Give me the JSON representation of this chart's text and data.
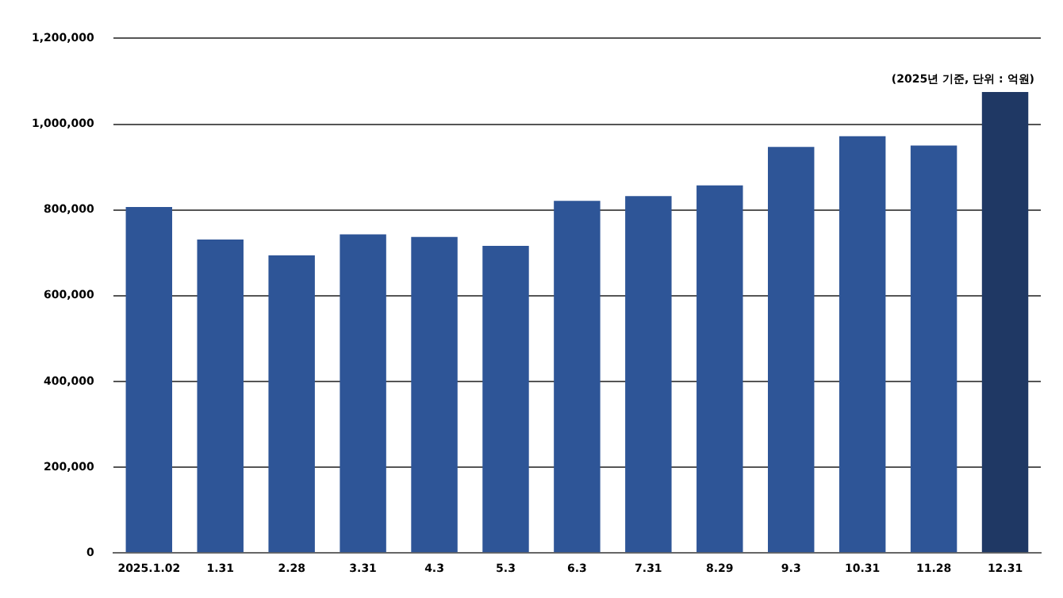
{
  "chart_data": {
    "type": "bar",
    "categories": [
      "2025.1.02",
      "1.31",
      "2.28",
      "3.31",
      "4.3",
      "5.3",
      "6.3",
      "7.31",
      "8.29",
      "9.3",
      "10.31",
      "11.28",
      "12.31"
    ],
    "values": [
      807000,
      731000,
      694000,
      743000,
      737000,
      716000,
      821000,
      832000,
      857000,
      947000,
      972000,
      950000,
      1075000
    ],
    "colors": [
      "#2e5597",
      "#2e5597",
      "#2e5597",
      "#2e5597",
      "#2e5597",
      "#2e5597",
      "#2e5597",
      "#2e5597",
      "#2e5597",
      "#2e5597",
      "#2e5597",
      "#2e5597",
      "#1f3864"
    ],
    "ylim": [
      0,
      1200000
    ],
    "yticks": [
      0,
      {
        "value": 200000,
        "label": "200,000"
      },
      {
        "value": 400000,
        "label": "400,000"
      },
      {
        "value": 600000,
        "label": "600,000"
      },
      {
        "value": 800000,
        "label": "800,000"
      },
      {
        "value": 1000000,
        "label": "1,000,000"
      },
      {
        "value": 1200000,
        "label": "1,200,000"
      }
    ],
    "grid": "y",
    "legend": false,
    "annotations": [
      "(2025년 기준, 단위 : 억원)"
    ]
  }
}
